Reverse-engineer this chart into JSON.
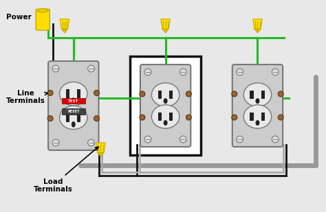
{
  "bg_color": "#d8d8d8",
  "labels": {
    "load_terminals": "Load\nTerminals",
    "line_terminals": "Line\nTerminals",
    "power": "Power"
  },
  "colors": {
    "black_wire": "#111111",
    "white_wire": "#aaaaaa",
    "green_wire": "#22bb22",
    "yellow_connector": "#ffdd00",
    "outlet_body": "#b8b8b8",
    "outlet_border": "#777777",
    "outlet_dark": "#222222",
    "outlet_bg": "#cccccc",
    "outlet_light": "#e8e8e8",
    "gfci_test": "#dd0000",
    "gfci_reset": "#444444",
    "bracket_color": "#111111",
    "screw_brown": "#996633",
    "wall_plate": "#e8e8e8",
    "box_white": "#ffffff",
    "screw_light": "#dddddd"
  },
  "label_fontsize": 7.5,
  "power_fontsize": 7.5
}
